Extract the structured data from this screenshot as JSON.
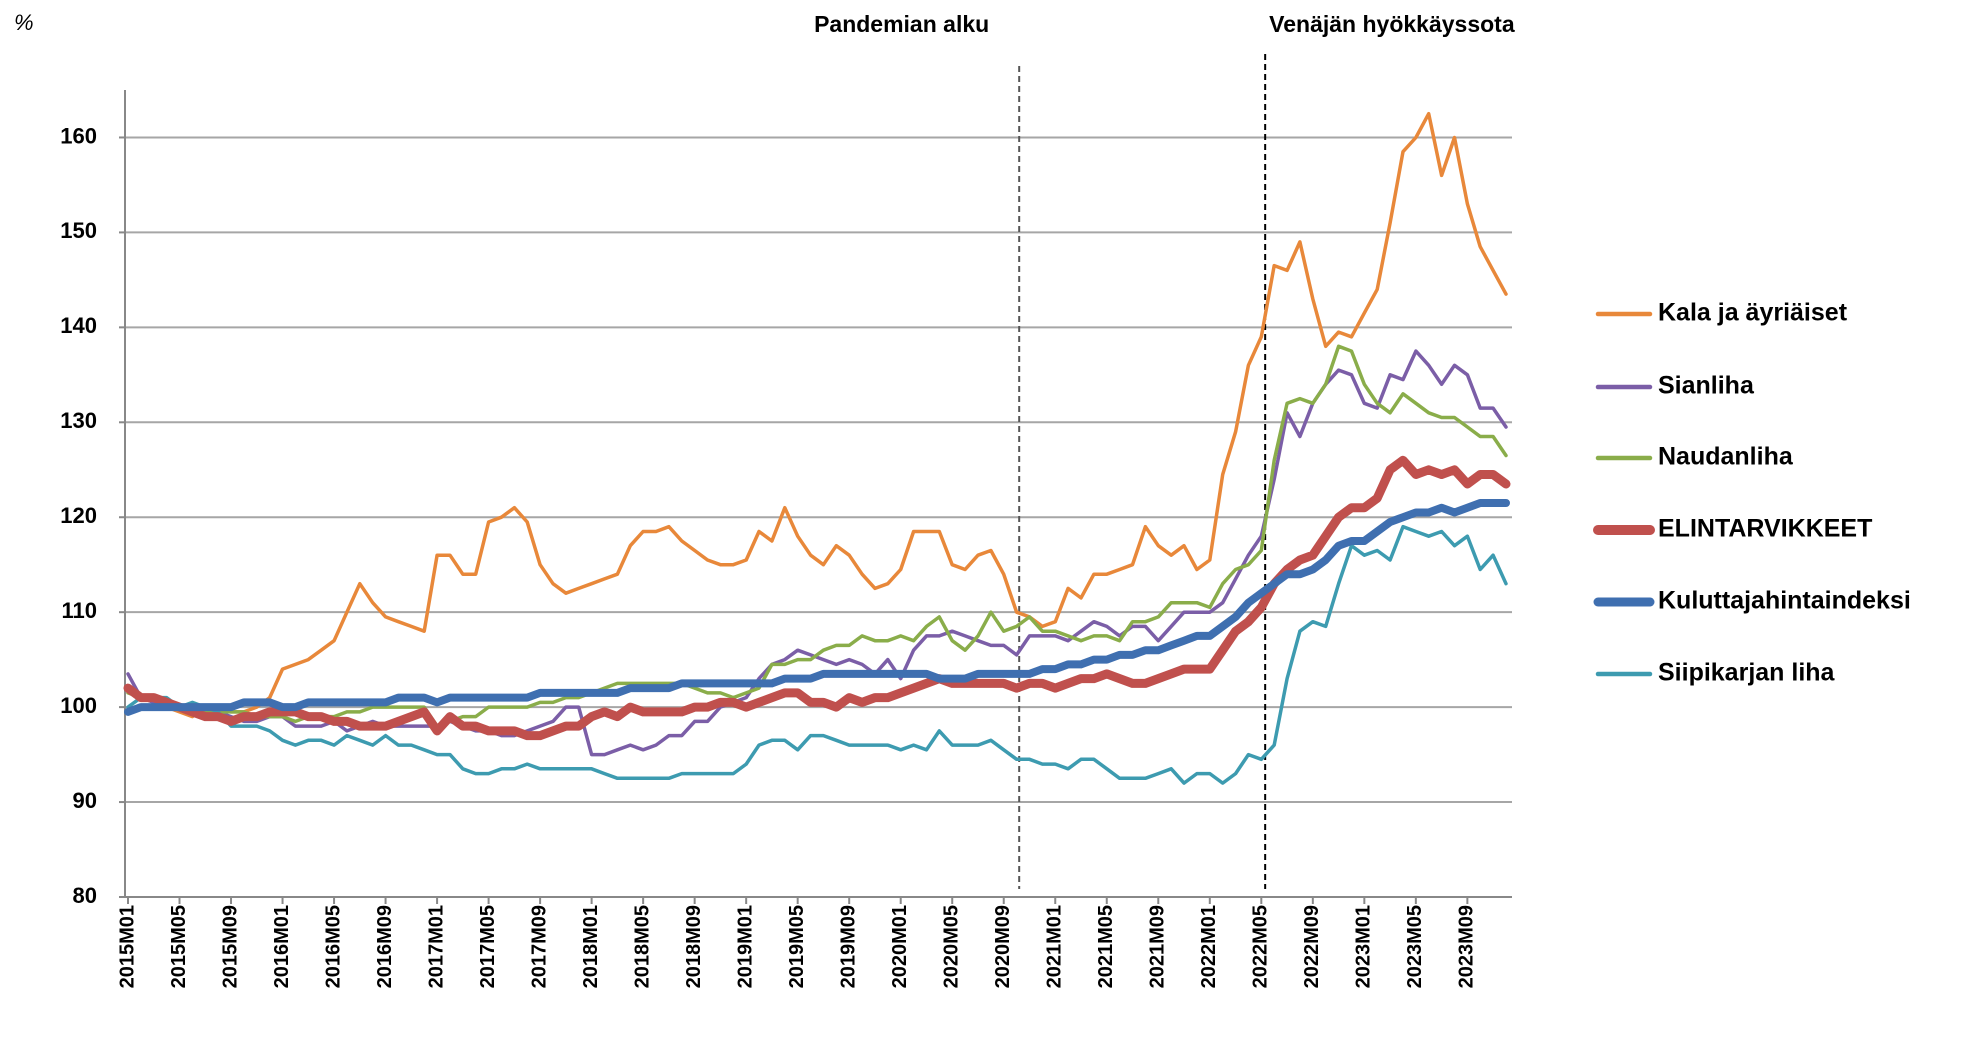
{
  "chart_data": {
    "type": "line",
    "y_label": "%",
    "categories": [
      "2015M01",
      null,
      null,
      null,
      "2015M05",
      null,
      null,
      null,
      "2015M09",
      null,
      null,
      null,
      "2016M01",
      null,
      null,
      null,
      "2016M05",
      null,
      null,
      null,
      "2016M09",
      null,
      null,
      null,
      "2017M01",
      null,
      null,
      null,
      "2017M05",
      null,
      null,
      null,
      "2017M09",
      null,
      null,
      null,
      "2018M01",
      null,
      null,
      null,
      "2018M05",
      null,
      null,
      null,
      "2018M09",
      null,
      null,
      null,
      "2019M01",
      null,
      null,
      null,
      "2019M05",
      null,
      null,
      null,
      "2019M09",
      null,
      null,
      null,
      "2020M01",
      null,
      null,
      null,
      "2020M05",
      null,
      null,
      null,
      "2020M09",
      null,
      null,
      null,
      "2021M01",
      null,
      null,
      null,
      "2021M05",
      null,
      null,
      null,
      "2021M09",
      null,
      null,
      null,
      "2022M01",
      null,
      null,
      null,
      "2022M05",
      null,
      null,
      null,
      "2022M09",
      null,
      null,
      null,
      "2023M01",
      null,
      null,
      null,
      "2023M05",
      null,
      null,
      null,
      "2023M09",
      null,
      null,
      null
    ],
    "ylim": [
      80,
      165
    ],
    "yticks": [
      80,
      90,
      100,
      110,
      120,
      130,
      140,
      150,
      160
    ],
    "grid": true,
    "legend": "right",
    "annotations": [
      {
        "text": "Pandemian alku",
        "x_index": 69.2,
        "side": "left"
      },
      {
        "text": "Venäjän hyökkäyssota",
        "x_index": 88.3,
        "side": "right"
      }
    ],
    "series": [
      {
        "name": "Kala ja äyriäiset",
        "color": "#e8883a",
        "width": 3.5,
        "values": [
          102,
          101,
          100.5,
          100,
          99.5,
          99,
          100,
          100,
          99.5,
          99.5,
          100,
          101,
          104,
          104.5,
          105,
          106,
          107,
          110,
          113,
          111,
          109.5,
          109,
          108.5,
          108,
          116,
          116,
          114,
          114,
          119.5,
          120,
          121,
          119.5,
          115,
          113,
          112,
          112.5,
          113,
          113.5,
          114,
          117,
          118.5,
          118.5,
          119,
          117.5,
          116.5,
          115.5,
          115,
          115,
          115.5,
          118.5,
          117.5,
          121,
          118,
          116,
          115,
          117,
          116,
          114,
          112.5,
          113,
          114.5,
          118.5,
          118.5,
          118.5,
          115,
          114.5,
          116,
          116.5,
          114,
          110,
          109.5,
          108.5,
          109,
          112.5,
          111.5,
          114,
          114,
          114.5,
          115,
          119,
          117,
          116,
          117,
          114.5,
          115.5,
          124.5,
          129,
          136,
          139,
          146.5,
          146,
          149,
          143,
          138,
          139.5,
          139,
          141.5,
          144,
          151,
          158.5,
          160,
          162.5,
          156,
          160,
          153,
          148.5,
          146,
          143.5
        ]
      },
      {
        "name": "Sianliha",
        "color": "#7b5ea7",
        "width": 3.5,
        "values": [
          103.5,
          101,
          100.5,
          100,
          100,
          100,
          99.5,
          99.5,
          99,
          98.5,
          98.5,
          99,
          99,
          98,
          98,
          98,
          98.5,
          97.5,
          98,
          98.5,
          98,
          98,
          98,
          98,
          98,
          98.5,
          98,
          97.5,
          97.5,
          97,
          97,
          97.5,
          98,
          98.5,
          100,
          100,
          95,
          95,
          95.5,
          96,
          95.5,
          96,
          97,
          97,
          98.5,
          98.5,
          100,
          100.5,
          101,
          103,
          104.5,
          105,
          106,
          105.5,
          105,
          104.5,
          105,
          104.5,
          103.5,
          105,
          103,
          106,
          107.5,
          107.5,
          108,
          107.5,
          107,
          106.5,
          106.5,
          105.5,
          107.5,
          107.5,
          107.5,
          107,
          108,
          109,
          108.5,
          107.5,
          108.5,
          108.5,
          107,
          108.5,
          110,
          110,
          110,
          111,
          113.5,
          116,
          118,
          124,
          131,
          128.5,
          132,
          134,
          135.5,
          135,
          132,
          131.5,
          135,
          134.5,
          137.5,
          136,
          134,
          136,
          135,
          131.5,
          131.5,
          129.5
        ]
      },
      {
        "name": "Naudanliha",
        "color": "#8aad4a",
        "width": 3.5,
        "values": [
          101.5,
          101,
          101,
          100.5,
          100,
          99.5,
          99.5,
          99.5,
          99.5,
          99.5,
          99,
          99,
          99,
          98.5,
          99,
          99,
          99,
          99.5,
          99.5,
          100,
          100,
          100,
          100,
          100,
          98,
          98.5,
          99,
          99,
          100,
          100,
          100,
          100,
          100.5,
          100.5,
          101,
          101,
          101.5,
          102,
          102.5,
          102.5,
          102.5,
          102.5,
          102.5,
          102.5,
          102,
          101.5,
          101.5,
          101,
          101.5,
          102,
          104.5,
          104.5,
          105,
          105,
          106,
          106.5,
          106.5,
          107.5,
          107,
          107,
          107.5,
          107,
          108.5,
          109.5,
          107,
          106,
          107.5,
          110,
          108,
          108.5,
          109.5,
          108,
          108,
          107.5,
          107,
          107.5,
          107.5,
          107,
          109,
          109,
          109.5,
          111,
          111,
          111,
          110.5,
          113,
          114.5,
          115,
          116.5,
          126,
          132,
          132.5,
          132,
          134,
          138,
          137.5,
          134,
          132,
          131,
          133,
          132,
          131,
          130.5,
          130.5,
          129.5,
          128.5,
          128.5,
          126.5
        ]
      },
      {
        "name": "ELINTARVIKKEET",
        "color": "#c0504d",
        "width": 9,
        "values": [
          102,
          101,
          101,
          100.5,
          100,
          99.5,
          99,
          99,
          98.5,
          99,
          99,
          99.5,
          99.5,
          99.5,
          99,
          99,
          98.5,
          98.5,
          98,
          98,
          98,
          98.5,
          99,
          99.5,
          97.5,
          99,
          98,
          98,
          97.5,
          97.5,
          97.5,
          97,
          97,
          97.5,
          98,
          98,
          99,
          99.5,
          99,
          100,
          99.5,
          99.5,
          99.5,
          99.5,
          100,
          100,
          100.5,
          100.5,
          100,
          100.5,
          101,
          101.5,
          101.5,
          100.5,
          100.5,
          100,
          101,
          100.5,
          101,
          101,
          101.5,
          102,
          102.5,
          103,
          102.5,
          102.5,
          102.5,
          102.5,
          102.5,
          102,
          102.5,
          102.5,
          102,
          102.5,
          103,
          103,
          103.5,
          103,
          102.5,
          102.5,
          103,
          103.5,
          104,
          104,
          104,
          106,
          108,
          109,
          110.5,
          113,
          114.5,
          115.5,
          116,
          118,
          120,
          121,
          121,
          122,
          125,
          126,
          124.5,
          125,
          124.5,
          125,
          123.5,
          124.5,
          124.5,
          123.5
        ]
      },
      {
        "name": "Kuluttajahintaindeksi",
        "color": "#3f6fb0",
        "width": 8,
        "values": [
          99.5,
          100,
          100,
          100,
          100,
          100,
          100,
          100,
          100,
          100.5,
          100.5,
          100.5,
          100,
          100,
          100.5,
          100.5,
          100.5,
          100.5,
          100.5,
          100.5,
          100.5,
          101,
          101,
          101,
          100.5,
          101,
          101,
          101,
          101,
          101,
          101,
          101,
          101.5,
          101.5,
          101.5,
          101.5,
          101.5,
          101.5,
          101.5,
          102,
          102,
          102,
          102,
          102.5,
          102.5,
          102.5,
          102.5,
          102.5,
          102.5,
          102.5,
          102.5,
          103,
          103,
          103,
          103.5,
          103.5,
          103.5,
          103.5,
          103.5,
          103.5,
          103.5,
          103.5,
          103.5,
          103,
          103,
          103,
          103.5,
          103.5,
          103.5,
          103.5,
          103.5,
          104,
          104,
          104.5,
          104.5,
          105,
          105,
          105.5,
          105.5,
          106,
          106,
          106.5,
          107,
          107.5,
          107.5,
          108.5,
          109.5,
          111,
          112,
          113,
          114,
          114,
          114.5,
          115.5,
          117,
          117.5,
          117.5,
          118.5,
          119.5,
          120,
          120.5,
          120.5,
          121,
          120.5,
          121,
          121.5,
          121.5,
          121.5
        ]
      },
      {
        "name": "Siipikarjan liha",
        "color": "#3d9bb0",
        "width": 3.5,
        "values": [
          100,
          101,
          101,
          101,
          100,
          100.5,
          100,
          99.5,
          98,
          98,
          98,
          97.5,
          96.5,
          96,
          96.5,
          96.5,
          96,
          97,
          96.5,
          96,
          97,
          96,
          96,
          95.5,
          95,
          95,
          93.5,
          93,
          93,
          93.5,
          93.5,
          94,
          93.5,
          93.5,
          93.5,
          93.5,
          93.5,
          93,
          92.5,
          92.5,
          92.5,
          92.5,
          92.5,
          93,
          93,
          93,
          93,
          93,
          94,
          96,
          96.5,
          96.5,
          95.5,
          97,
          97,
          96.5,
          96,
          96,
          96,
          96,
          95.5,
          96,
          95.5,
          97.5,
          96,
          96,
          96,
          96.5,
          95.5,
          94.5,
          94.5,
          94,
          94,
          93.5,
          94.5,
          94.5,
          93.5,
          92.5,
          92.5,
          92.5,
          93,
          93.5,
          92,
          93,
          93,
          92,
          93,
          95,
          94.5,
          96,
          103,
          108,
          109,
          108.5,
          113,
          117,
          116,
          116.5,
          115.5,
          119,
          118.5,
          118,
          118.5,
          117,
          118,
          114.5,
          116,
          113
        ]
      }
    ]
  }
}
